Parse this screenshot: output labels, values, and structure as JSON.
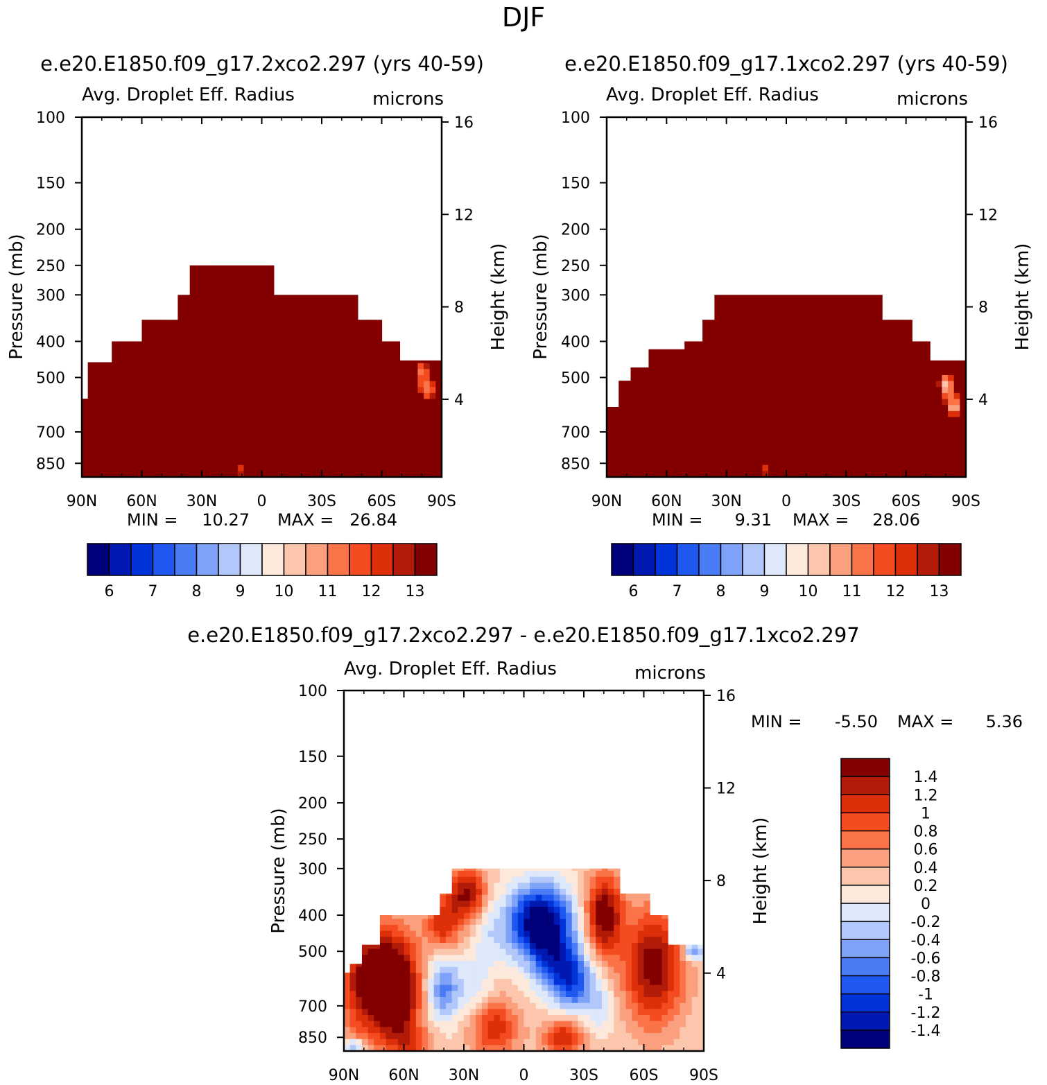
{
  "page_title": "DJF",
  "palettes": {
    "abs": [
      "#00007a",
      "#0019b0",
      "#0033d9",
      "#1f58f0",
      "#4a7cf5",
      "#7ea2f7",
      "#b2c8fb",
      "#dde8fb",
      "#fde9db",
      "#fcc6ad",
      "#fba07f",
      "#fa7349",
      "#f44c20",
      "#dc2f0a",
      "#b11b08",
      "#830000"
    ],
    "diff": [
      "#00007a",
      "#0019b0",
      "#0033d9",
      "#1f58f0",
      "#4a7cf5",
      "#7ea2f7",
      "#b2c8fb",
      "#dde8fb",
      "#fde9db",
      "#fcc6ad",
      "#fba07f",
      "#fa7349",
      "#f44c20",
      "#dc2f0a",
      "#b11b08",
      "#830000"
    ]
  },
  "chart_data": [
    {
      "type": "heatmap",
      "title": "e.e20.E1850.f09_g17.2xco2.297 (yrs 40-59)",
      "subtitle_left": "Avg. Droplet Eff. Radius",
      "subtitle_right": "microns",
      "ylabel": "Pressure (mb)",
      "ylabel_right": "Height (km)",
      "x_ticks": [
        "90N",
        "60N",
        "30N",
        "0",
        "30S",
        "60S",
        "90S"
      ],
      "y_ticks": [
        100,
        150,
        200,
        250,
        300,
        400,
        500,
        700,
        850
      ],
      "y_ticks_right": [
        16,
        12,
        8,
        4
      ],
      "ylim": [
        100,
        925
      ],
      "y_scale": "log",
      "stats": {
        "min_label": "MIN =",
        "min": "10.27",
        "max_label": "MAX =",
        "max": "26.84"
      },
      "colorbar": {
        "orientation": "horizontal",
        "labels": [
          "6",
          "7",
          "8",
          "9",
          "10",
          "11",
          "12",
          "13"
        ]
      },
      "cloud_top_profile": [
        [
          -90,
          570
        ],
        [
          -87,
          455
        ],
        [
          -75,
          400
        ],
        [
          -65,
          400
        ],
        [
          -60,
          350
        ],
        [
          -43,
          300
        ],
        [
          -37,
          250
        ],
        [
          3,
          250
        ],
        [
          5,
          300
        ],
        [
          37,
          300
        ],
        [
          48,
          350
        ],
        [
          60,
          400
        ],
        [
          70,
          450
        ],
        [
          90,
          450
        ]
      ],
      "fill_value": 26.84,
      "anomalies": [
        {
          "lat": 80,
          "p": 480,
          "value": 11.5
        },
        {
          "lat": 83,
          "p": 540,
          "value": 11.0
        },
        {
          "lat": -10,
          "p": 880,
          "value": 12.2
        }
      ]
    },
    {
      "type": "heatmap",
      "title": "e.e20.E1850.f09_g17.1xco2.297 (yrs 40-59)",
      "subtitle_left": "Avg. Droplet Eff. Radius",
      "subtitle_right": "microns",
      "ylabel": "Pressure (mb)",
      "ylabel_right": "Height (km)",
      "x_ticks": [
        "90N",
        "60N",
        "30N",
        "0",
        "30S",
        "60S",
        "90S"
      ],
      "y_ticks": [
        100,
        150,
        200,
        250,
        300,
        400,
        500,
        700,
        850
      ],
      "y_ticks_right": [
        16,
        12,
        8,
        4
      ],
      "ylim": [
        100,
        925
      ],
      "y_scale": "log",
      "stats": {
        "min_label": "MIN =",
        "min": "9.31",
        "max_label": "MAX =",
        "max": "28.06"
      },
      "colorbar": {
        "orientation": "horizontal",
        "labels": [
          "6",
          "7",
          "8",
          "9",
          "10",
          "11",
          "12",
          "13"
        ]
      },
      "cloud_top_profile": [
        [
          -90,
          600
        ],
        [
          -85,
          510
        ],
        [
          -78,
          470
        ],
        [
          -70,
          420
        ],
        [
          -50,
          400
        ],
        [
          -42,
          350
        ],
        [
          -37,
          300
        ],
        [
          45,
          300
        ],
        [
          48,
          350
        ],
        [
          62,
          400
        ],
        [
          72,
          450
        ],
        [
          90,
          450
        ]
      ],
      "fill_value": 28.06,
      "anomalies": [
        {
          "lat": 80,
          "p": 520,
          "value": 10.2
        },
        {
          "lat": 84,
          "p": 600,
          "value": 10.4
        },
        {
          "lat": -10,
          "p": 880,
          "value": 12.0
        }
      ]
    },
    {
      "type": "heatmap",
      "title": "e.e20.E1850.f09_g17.2xco2.297 - e.e20.E1850.f09_g17.1xco2.297",
      "subtitle_left": "Avg. Droplet Eff. Radius",
      "subtitle_right": "microns",
      "ylabel": "Pressure (mb)",
      "ylabel_right": "Height (km)",
      "x_ticks": [
        "90N",
        "60N",
        "30N",
        "0",
        "30S",
        "60S",
        "90S"
      ],
      "y_ticks": [
        100,
        150,
        200,
        250,
        300,
        400,
        500,
        700,
        850
      ],
      "y_ticks_right": [
        16,
        12,
        8,
        4
      ],
      "ylim": [
        100,
        925
      ],
      "y_scale": "log",
      "stats": {
        "min_label": "MIN =",
        "min": "-5.50",
        "max_label": "MAX =",
        "max": "5.36"
      },
      "colorbar": {
        "orientation": "vertical",
        "labels": [
          "1.4",
          "1.2",
          "1",
          "0.8",
          "0.6",
          "0.4",
          "0.2",
          "0",
          "-0.2",
          "-0.4",
          "-0.6",
          "-0.8",
          "-1",
          "-1.2",
          "-1.4"
        ]
      },
      "cloud_top_profile": [
        [
          -90,
          570
        ],
        [
          -87,
          540
        ],
        [
          -81,
          480
        ],
        [
          -73,
          400
        ],
        [
          -42,
          350
        ],
        [
          -37,
          300
        ],
        [
          45,
          300
        ],
        [
          48,
          350
        ],
        [
          62,
          400
        ],
        [
          72,
          480
        ],
        [
          88,
          480
        ],
        [
          90,
          480
        ]
      ],
      "regions": [
        {
          "lat": -75,
          "p": 600,
          "value": 1.5,
          "r_lat": 16,
          "r_p": 0.35
        },
        {
          "lat": -62,
          "p": 650,
          "value": 1.2,
          "r_lat": 10,
          "r_p": 0.3
        },
        {
          "lat": -40,
          "p": 420,
          "value": 0.9,
          "r_lat": 9,
          "r_p": 0.18
        },
        {
          "lat": -28,
          "p": 350,
          "value": 1.2,
          "r_lat": 9,
          "r_p": 0.15
        },
        {
          "lat": -40,
          "p": 630,
          "value": -0.9,
          "r_lat": 8,
          "r_p": 0.2
        },
        {
          "lat": -25,
          "p": 620,
          "value": -0.4,
          "r_lat": 9,
          "r_p": 0.2
        },
        {
          "lat": -18,
          "p": 450,
          "value": -0.3,
          "r_lat": 7,
          "r_p": 0.2
        },
        {
          "lat": 8,
          "p": 420,
          "value": -2.0,
          "r_lat": 16,
          "r_p": 0.23
        },
        {
          "lat": 25,
          "p": 600,
          "value": -1.1,
          "r_lat": 10,
          "r_p": 0.2
        },
        {
          "lat": 15,
          "p": 550,
          "value": -0.8,
          "r_lat": 10,
          "r_p": 0.18
        },
        {
          "lat": 38,
          "p": 700,
          "value": -0.4,
          "r_lat": 7,
          "r_p": 0.18
        },
        {
          "lat": 40,
          "p": 400,
          "value": 1.4,
          "r_lat": 9,
          "r_p": 0.25
        },
        {
          "lat": 65,
          "p": 550,
          "value": 1.3,
          "r_lat": 15,
          "r_p": 0.35
        },
        {
          "lat": 85,
          "p": 500,
          "value": -1.0,
          "r_lat": 5,
          "r_p": 0.06
        },
        {
          "lat": -85,
          "p": 900,
          "value": -0.8,
          "r_lat": 6,
          "r_p": 0.05
        },
        {
          "lat": -15,
          "p": 800,
          "value": 0.9,
          "r_lat": 12,
          "r_p": 0.18
        },
        {
          "lat": 20,
          "p": 850,
          "value": 1.0,
          "r_lat": 10,
          "r_p": 0.12
        },
        {
          "lat": -55,
          "p": 880,
          "value": 0.5,
          "r_lat": 10,
          "r_p": 0.1
        }
      ]
    }
  ]
}
